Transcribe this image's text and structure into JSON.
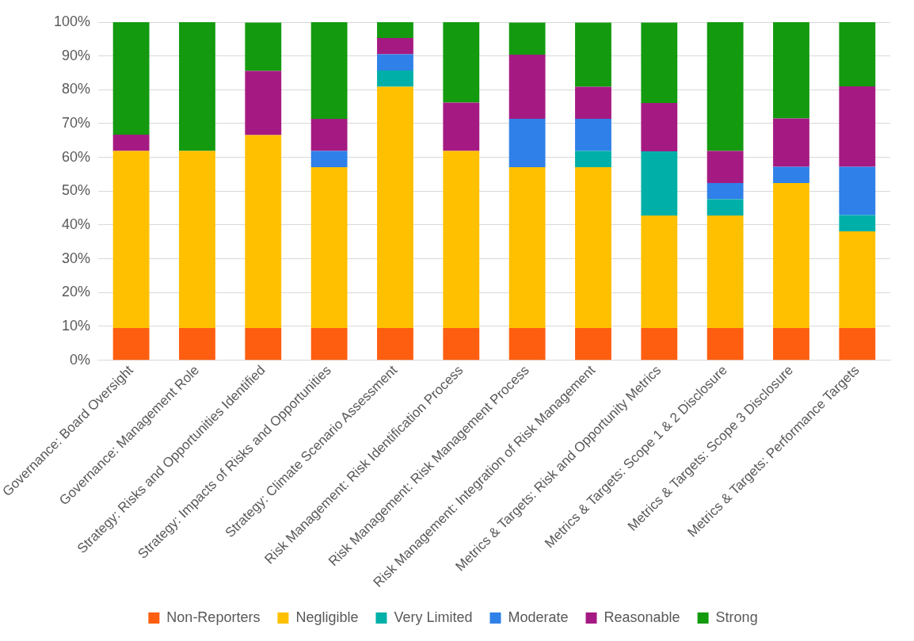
{
  "chart_data": {
    "type": "bar",
    "stacked": true,
    "categories": [
      "Governance: Board Oversight",
      "Governance: Management Role",
      "Strategy: Risks and Opportunities Identified",
      "Strategy: Impacts of Risks and Opportunities",
      "Strategy: Climate Scenario Assessment",
      "Risk Management: Risk Identification Process",
      "Risk Management: Risk Management Process",
      "Risk Management: Integration of Risk Management",
      "Metrics & Targets: Risk and Opportunity Metrics",
      "Metrics & Targets: Scope 1 & 2 Disclosure",
      "Metrics & Targets: Scope 3 Disclosure",
      "Metrics & Targets: Performance Targets"
    ],
    "series": [
      {
        "name": "Non-Reporters",
        "color": "#fe5e10",
        "values": [
          9.5,
          9.5,
          9.5,
          9.5,
          9.5,
          9.5,
          9.5,
          9.5,
          9.5,
          9.5,
          9.5,
          9.5
        ]
      },
      {
        "name": "Negligible",
        "color": "#ffc000",
        "values": [
          52.4,
          52.4,
          57.1,
          47.6,
          71.4,
          52.4,
          47.6,
          47.6,
          33.3,
          33.3,
          42.9,
          28.6
        ]
      },
      {
        "name": "Very Limited",
        "color": "#00b0a8",
        "values": [
          0,
          0,
          0,
          0,
          4.8,
          0,
          0,
          4.8,
          19.0,
          4.8,
          0,
          4.8
        ]
      },
      {
        "name": "Moderate",
        "color": "#2f80e8",
        "values": [
          0,
          0,
          0,
          4.8,
          4.8,
          0,
          14.3,
          9.5,
          0,
          4.8,
          4.8,
          14.3
        ]
      },
      {
        "name": "Reasonable",
        "color": "#a51a82",
        "values": [
          4.8,
          0,
          19.0,
          9.5,
          4.8,
          14.3,
          19.0,
          9.5,
          14.3,
          9.5,
          14.3,
          23.8
        ]
      },
      {
        "name": "Strong",
        "color": "#139a0f",
        "values": [
          33.3,
          38.1,
          14.3,
          28.6,
          4.8,
          23.8,
          9.5,
          19.0,
          23.8,
          38.1,
          28.6,
          19.0
        ]
      }
    ],
    "ylim": [
      0,
      100
    ],
    "yticks": [
      {
        "value": 0,
        "label": "0%"
      },
      {
        "value": 10,
        "label": "10%"
      },
      {
        "value": 20,
        "label": "20%"
      },
      {
        "value": 30,
        "label": "30%"
      },
      {
        "value": 40,
        "label": "40%"
      },
      {
        "value": 50,
        "label": "50%"
      },
      {
        "value": 60,
        "label": "60%"
      },
      {
        "value": 70,
        "label": "70%"
      },
      {
        "value": 80,
        "label": "80%"
      },
      {
        "value": 90,
        "label": "90%"
      },
      {
        "value": 100,
        "label": "100%"
      }
    ],
    "grid": "y",
    "legend": "bottom"
  }
}
